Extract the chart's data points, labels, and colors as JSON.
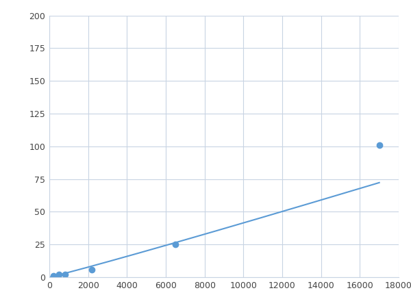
{
  "x": [
    200,
    500,
    800,
    2200,
    6500,
    17000
  ],
  "y": [
    1,
    2,
    2,
    6,
    25,
    101
  ],
  "line_color": "#5b9bd5",
  "marker_color": "#5b9bd5",
  "marker_size": 6,
  "marker_style": "o",
  "line_width": 1.5,
  "xlim": [
    0,
    18000
  ],
  "ylim": [
    0,
    200
  ],
  "xticks": [
    0,
    2000,
    4000,
    6000,
    8000,
    10000,
    12000,
    14000,
    16000,
    18000
  ],
  "yticks": [
    0,
    25,
    50,
    75,
    100,
    125,
    150,
    175,
    200
  ],
  "grid": true,
  "grid_color": "#c8d4e3",
  "background_color": "#ffffff",
  "axes_background": "#ffffff"
}
